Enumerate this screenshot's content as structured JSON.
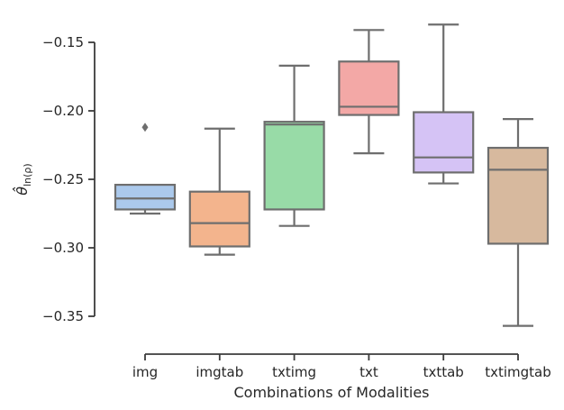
{
  "chart_data": {
    "type": "box",
    "title": "",
    "xlabel": "Combinations of Modalities",
    "ylabel": "θ̂",
    "ylabel_subscript": "ln(ρ)",
    "ylim": [
      -0.375,
      -0.135
    ],
    "yticks": [
      -0.15,
      -0.2,
      -0.25,
      -0.3,
      -0.35
    ],
    "ytick_labels": [
      "−0.15",
      "−0.20",
      "−0.25",
      "−0.30",
      "−0.35"
    ],
    "categories": [
      "img",
      "imgtab",
      "txtimg",
      "txt",
      "txttab",
      "txtimgtab"
    ],
    "colors": [
      "#abc9ec",
      "#f3b48d",
      "#98dba7",
      "#f3a8a6",
      "#d5c3f5",
      "#d7b99e"
    ],
    "line_color": "#6e6e6e",
    "grid": false,
    "boxes": [
      {
        "name": "img",
        "whisker_low": -0.275,
        "q1": -0.272,
        "median": -0.264,
        "q3": -0.254,
        "whisker_high": -0.254,
        "outliers": [
          -0.212
        ]
      },
      {
        "name": "imgtab",
        "whisker_low": -0.305,
        "q1": -0.299,
        "median": -0.282,
        "q3": -0.259,
        "whisker_high": -0.213,
        "outliers": []
      },
      {
        "name": "txtimg",
        "whisker_low": -0.284,
        "q1": -0.272,
        "median": -0.21,
        "q3": -0.208,
        "whisker_high": -0.167,
        "outliers": []
      },
      {
        "name": "txt",
        "whisker_low": -0.231,
        "q1": -0.203,
        "median": -0.197,
        "q3": -0.164,
        "whisker_high": -0.141,
        "outliers": []
      },
      {
        "name": "txttab",
        "whisker_low": -0.253,
        "q1": -0.245,
        "median": -0.234,
        "q3": -0.201,
        "whisker_high": -0.137,
        "outliers": []
      },
      {
        "name": "txtimgtab",
        "whisker_low": -0.357,
        "q1": -0.297,
        "median": -0.243,
        "q3": -0.227,
        "whisker_high": -0.206,
        "outliers": []
      }
    ]
  }
}
